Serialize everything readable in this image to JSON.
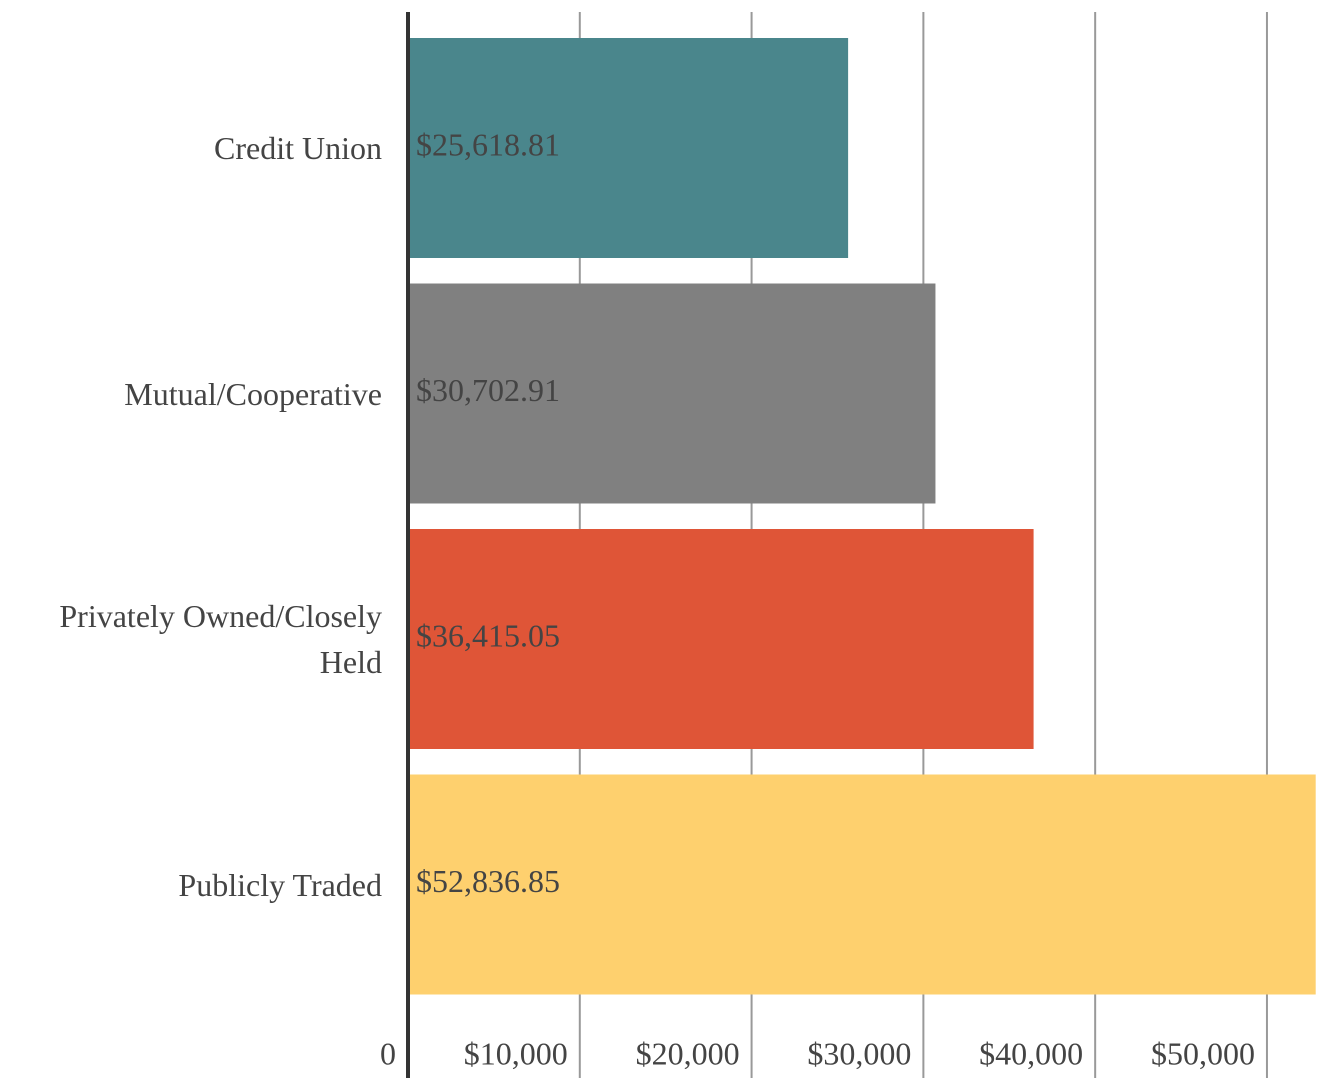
{
  "chart_data": {
    "type": "bar",
    "orientation": "horizontal",
    "categories": [
      "Credit Union",
      "Mutual/Cooperative",
      "Privately Owned/Closely Held",
      "Publicly Traded"
    ],
    "values": [
      25618.81,
      30702.91,
      36415.05,
      52836.85
    ],
    "value_labels": [
      "$25,618.81",
      "$30,702.91",
      "$36,415.05",
      "$52,836.85"
    ],
    "colors": [
      "#4a868c",
      "#808080",
      "#df5537",
      "#fed06e"
    ],
    "xlim": [
      0,
      53000
    ],
    "xticks": [
      0,
      {
        "value": 10000,
        "label": "$10,000"
      },
      {
        "value": 20000,
        "label": "$20,000"
      },
      {
        "value": 30000,
        "label": "$30,000"
      },
      {
        "value": 40000,
        "label": "$40,000"
      },
      {
        "value": 50000,
        "label": "$50,000"
      }
    ],
    "grid": true
  }
}
